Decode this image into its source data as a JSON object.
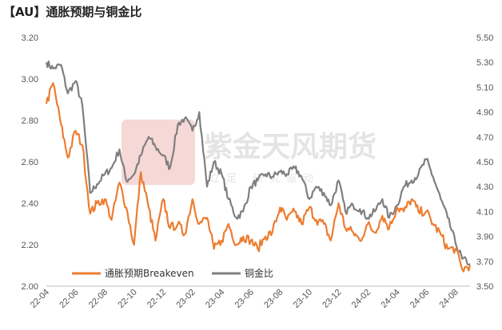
{
  "title": "【AU】通胀预期与铜金比",
  "watermark": {
    "main": "紫金天风期货",
    "sub": "立足 研究驱动"
  },
  "colors": {
    "breakeven": "#ED7D31",
    "copper_gold": "#7F7F7F"
  },
  "chart_data": {
    "type": "line",
    "title": "【AU】通胀预期与铜金比",
    "xlabel": "",
    "ylabel": "",
    "x_tick_labels": [
      "22-04",
      "22-06",
      "22-08",
      "22-10",
      "22-12",
      "23-02",
      "23-04",
      "23-06",
      "23-08",
      "23-10",
      "23-12",
      "24-02",
      "24-04",
      "24-06",
      "24-08"
    ],
    "x_range": [
      "2022-04",
      "2024-09"
    ],
    "left_axis": {
      "ylim": [
        2.0,
        3.2
      ],
      "ticks": [
        "2.00",
        "2.20",
        "2.40",
        "2.60",
        "2.80",
        "3.00",
        "3.20"
      ]
    },
    "right_axis": {
      "ylim": [
        3.5,
        5.5
      ],
      "ticks": [
        "3.50",
        "3.70",
        "3.90",
        "4.10",
        "4.30",
        "4.50",
        "4.70",
        "4.90",
        "5.10",
        "5.30",
        "5.50"
      ]
    },
    "grid": false,
    "legend": "bottom-left inside plot",
    "series": [
      {
        "name": "通胀预期Breakeven",
        "axis": "left",
        "color": "#ED7D31",
        "x": [
          "2022-04",
          "2022-04-15",
          "2022-05",
          "2022-05-15",
          "2022-06",
          "2022-06-15",
          "2022-07",
          "2022-07-15",
          "2022-08",
          "2022-08-15",
          "2022-09",
          "2022-09-15",
          "2022-10",
          "2022-10-15",
          "2022-11",
          "2022-11-15",
          "2022-12",
          "2022-12-15",
          "2023-01",
          "2023-01-15",
          "2023-02",
          "2023-02-15",
          "2023-03",
          "2023-03-15",
          "2023-04",
          "2023-04-15",
          "2023-05",
          "2023-05-15",
          "2023-06",
          "2023-06-15",
          "2023-07",
          "2023-07-15",
          "2023-08",
          "2023-08-15",
          "2023-09",
          "2023-09-15",
          "2023-10",
          "2023-10-15",
          "2023-11",
          "2023-11-15",
          "2023-12",
          "2023-12-15",
          "2024-01",
          "2024-01-15",
          "2024-02",
          "2024-02-15",
          "2024-03",
          "2024-03-15",
          "2024-04",
          "2024-04-15",
          "2024-05",
          "2024-05-15",
          "2024-06",
          "2024-06-15",
          "2024-07",
          "2024-07-15",
          "2024-08",
          "2024-08-15",
          "2024-09"
        ],
        "values": [
          2.88,
          2.98,
          2.78,
          2.62,
          2.75,
          2.68,
          2.35,
          2.4,
          2.42,
          2.32,
          2.5,
          2.38,
          2.2,
          2.55,
          2.38,
          2.22,
          2.42,
          2.28,
          2.3,
          2.25,
          2.42,
          2.3,
          2.33,
          2.18,
          2.22,
          2.3,
          2.2,
          2.24,
          2.22,
          2.18,
          2.24,
          2.26,
          2.38,
          2.32,
          2.36,
          2.3,
          2.38,
          2.32,
          2.3,
          2.22,
          2.4,
          2.28,
          2.26,
          2.22,
          2.3,
          2.26,
          2.34,
          2.28,
          2.38,
          2.36,
          2.42,
          2.36,
          2.36,
          2.3,
          2.25,
          2.18,
          2.18,
          2.08,
          2.1
        ]
      },
      {
        "name": "铜金比",
        "axis": "right",
        "color": "#7F7F7F",
        "x": [
          "2022-04",
          "2022-04-15",
          "2022-05",
          "2022-05-15",
          "2022-06",
          "2022-06-15",
          "2022-07",
          "2022-07-15",
          "2022-08",
          "2022-08-15",
          "2022-09",
          "2022-09-15",
          "2022-10",
          "2022-10-15",
          "2022-11",
          "2022-11-15",
          "2022-12",
          "2022-12-15",
          "2023-01",
          "2023-01-15",
          "2023-02",
          "2023-02-15",
          "2023-03",
          "2023-03-15",
          "2023-04",
          "2023-04-15",
          "2023-05",
          "2023-05-15",
          "2023-06",
          "2023-06-15",
          "2023-07",
          "2023-07-15",
          "2023-08",
          "2023-08-15",
          "2023-09",
          "2023-09-15",
          "2023-10",
          "2023-10-15",
          "2023-11",
          "2023-11-15",
          "2023-12",
          "2023-12-15",
          "2024-01",
          "2024-01-15",
          "2024-02",
          "2024-02-15",
          "2024-03",
          "2024-03-15",
          "2024-04",
          "2024-04-15",
          "2024-05",
          "2024-05-15",
          "2024-06",
          "2024-06-15",
          "2024-07",
          "2024-07-15",
          "2024-08",
          "2024-08-15",
          "2024-09"
        ],
        "values": [
          5.3,
          5.25,
          5.28,
          5.05,
          5.15,
          4.95,
          4.25,
          4.32,
          4.4,
          4.45,
          4.6,
          4.35,
          4.4,
          4.55,
          4.7,
          4.62,
          4.55,
          4.45,
          4.8,
          4.85,
          4.75,
          4.9,
          4.3,
          4.5,
          4.4,
          4.2,
          4.05,
          4.1,
          4.3,
          4.35,
          4.4,
          4.38,
          4.42,
          4.4,
          4.45,
          4.38,
          4.2,
          4.3,
          4.25,
          4.15,
          4.35,
          4.1,
          4.15,
          4.12,
          4.05,
          4.1,
          4.2,
          4.05,
          4.15,
          4.3,
          4.35,
          4.4,
          4.52,
          4.38,
          4.2,
          4.05,
          3.85,
          3.72,
          3.68
        ]
      }
    ]
  }
}
